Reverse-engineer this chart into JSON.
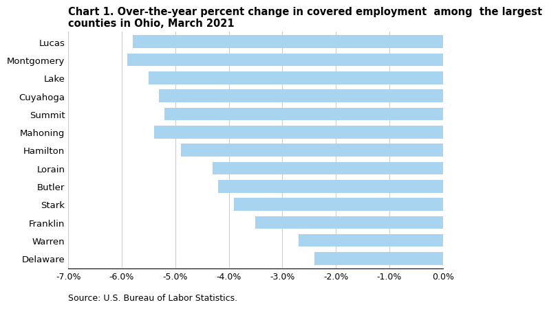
{
  "counties": [
    "Lucas",
    "Montgomery",
    "Lake",
    "Cuyahoga",
    "Summit",
    "Mahoning",
    "Hamilton",
    "Lorain",
    "Butler",
    "Stark",
    "Franklin",
    "Warren",
    "Delaware"
  ],
  "values": [
    -5.8,
    -5.9,
    -5.5,
    -5.3,
    -5.2,
    -5.4,
    -4.9,
    -4.3,
    -4.2,
    -3.9,
    -3.5,
    -2.7,
    -2.4
  ],
  "bar_color": "#a8d4f0",
  "title_line1": "Chart 1. Over-the-year percent change in covered employment  among  the largest",
  "title_line2": "counties in Ohio, March 2021",
  "xlim": [
    -7.0,
    0.0
  ],
  "xticks": [
    -7.0,
    -6.0,
    -5.0,
    -4.0,
    -3.0,
    -2.0,
    -1.0,
    0.0
  ],
  "source_text": "Source: U.S. Bureau of Labor Statistics.",
  "background_color": "#ffffff",
  "grid_color": "#cccccc",
  "bar_height": 0.7,
  "title_fontsize": 10.5,
  "tick_fontsize": 9,
  "label_fontsize": 9.5
}
